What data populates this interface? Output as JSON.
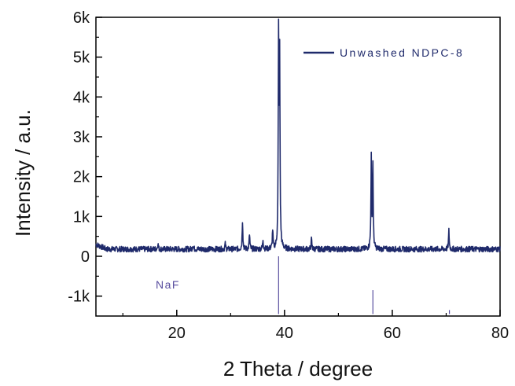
{
  "chart_data": {
    "type": "line",
    "title": "",
    "xlabel": "2 Theta / degree",
    "ylabel": "Intensity / a.u.",
    "xlim": [
      5,
      80
    ],
    "ylim": [
      -1500,
      6000
    ],
    "x_ticks": [
      20,
      40,
      60,
      80
    ],
    "x_tick_labels": [
      "20",
      "40",
      "60",
      "80"
    ],
    "y_ticks": [
      -1000,
      0,
      1000,
      2000,
      3000,
      4000,
      5000,
      6000
    ],
    "y_tick_labels": [
      "-1k",
      "0",
      "1k",
      "2k",
      "3k",
      "4k",
      "5k",
      "6k"
    ],
    "grid": false,
    "legend_position": "top-right",
    "colors": {
      "series": "#1f2a6b",
      "reference": "#5a4fa0"
    },
    "series": [
      {
        "name": "Unwashed NDPC-8",
        "baseline": 180,
        "peaks": [
          {
            "x": 16.5,
            "y": 330
          },
          {
            "x": 23.0,
            "y": 300
          },
          {
            "x": 29.0,
            "y": 310
          },
          {
            "x": 32.2,
            "y": 900
          },
          {
            "x": 33.5,
            "y": 550
          },
          {
            "x": 36.0,
            "y": 420
          },
          {
            "x": 37.8,
            "y": 650
          },
          {
            "x": 38.9,
            "y": 5350
          },
          {
            "x": 39.1,
            "y": 4750
          },
          {
            "x": 45.0,
            "y": 430
          },
          {
            "x": 56.1,
            "y": 2450
          },
          {
            "x": 56.4,
            "y": 2250
          },
          {
            "x": 70.5,
            "y": 650
          }
        ]
      }
    ],
    "reference": {
      "label": "NaF",
      "baseline": -1450,
      "lines": [
        {
          "x": 38.9,
          "y": 0
        },
        {
          "x": 56.4,
          "y": -850
        },
        {
          "x": 70.6,
          "y": -1350
        }
      ]
    }
  }
}
